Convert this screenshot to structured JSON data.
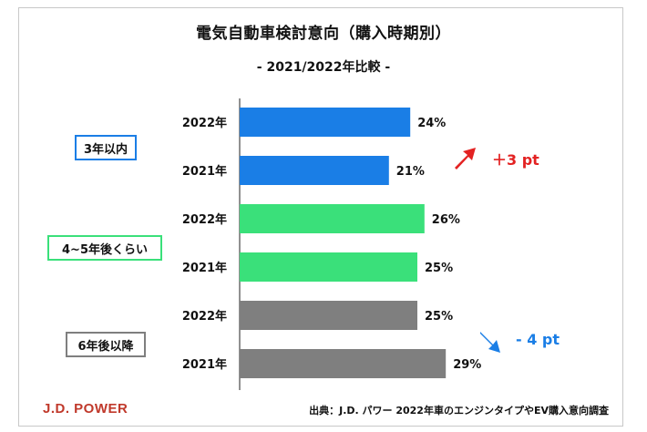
{
  "chart_data": {
    "type": "bar",
    "orientation": "horizontal",
    "title": "電気自動車検討意向（購入時期別）",
    "subtitle": "- 2021/2022年比較 -",
    "xlim": [
      0,
      40
    ],
    "unit": "%",
    "groups": [
      {
        "name": "3年以内",
        "color": "#1a7ee6",
        "border": "#1a7ee6",
        "bars": [
          {
            "label": "2022年",
            "value": 24
          },
          {
            "label": "2021年",
            "value": 21
          }
        ]
      },
      {
        "name": "4~5年後くらい",
        "color": "#3ae07a",
        "border": "#3ae07a",
        "bars": [
          {
            "label": "2022年",
            "value": 26
          },
          {
            "label": "2021年",
            "value": 25
          }
        ]
      },
      {
        "name": "6年後以降",
        "color": "#7f7f7f",
        "border": "#7f7f7f",
        "bars": [
          {
            "label": "2022年",
            "value": 25
          },
          {
            "label": "2021年",
            "value": 29
          }
        ]
      }
    ],
    "annotations": [
      {
        "text": "＋3 pt",
        "color": "#e32222",
        "direction": "up",
        "group": "3年以内"
      },
      {
        "text": "- 4 pt",
        "color": "#1a7ee6",
        "direction": "down",
        "group": "6年後以降"
      }
    ]
  },
  "footer": {
    "logo": "J.D. POWER",
    "logo_color": "#c0392b",
    "source": "出典：J.D. パワー 2022年車のエンジンタイプやEV購入意向調査"
  }
}
